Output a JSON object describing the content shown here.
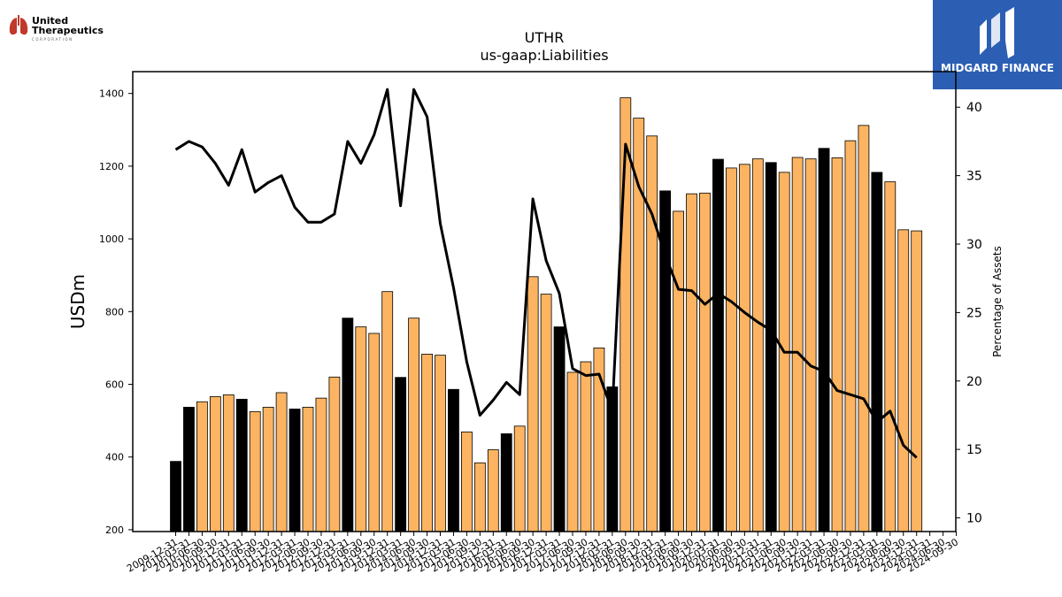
{
  "company_logo": {
    "line1": "United",
    "line2": "Therapeutics",
    "line3": "CORPORATION"
  },
  "watermark": {
    "brand": "MIDGARD FINANCE"
  },
  "chart_data": {
    "type": "bar",
    "title": "UTHR",
    "subtitle": "us-gaap:Liabilities",
    "ylabel": "USDm",
    "y2label": "Percentage of Assets",
    "ylim": [
      195,
      1460
    ],
    "y2lim": [
      9,
      42.6
    ],
    "yticks": [
      200,
      400,
      600,
      800,
      1000,
      1200,
      1400
    ],
    "y2ticks": [
      10,
      15,
      20,
      25,
      30,
      35,
      40
    ],
    "colors": {
      "bar_fy": "#000000",
      "bar_q": "#fdb462",
      "line": "#000000"
    },
    "categories": [
      "2009-12-31",
      "2010-03-31",
      "2010-06-30",
      "2010-09-30",
      "2010-12-31",
      "2011-03-31",
      "2011-06-30",
      "2011-09-30",
      "2011-12-31",
      "2012-03-31",
      "2012-06-30",
      "2012-09-30",
      "2012-12-31",
      "2013-03-31",
      "2013-06-30",
      "2013-09-30",
      "2013-12-31",
      "2014-03-31",
      "2014-06-30",
      "2014-09-30",
      "2014-12-31",
      "2015-03-31",
      "2015-06-30",
      "2015-09-30",
      "2015-12-31",
      "2016-03-31",
      "2016-06-30",
      "2016-09-30",
      "2016-12-31",
      "2017-03-31",
      "2017-06-30",
      "2017-09-30",
      "2017-12-31",
      "2018-03-31",
      "2018-06-30",
      "2018-09-30",
      "2018-12-31",
      "2019-03-31",
      "2019-06-30",
      "2019-09-30",
      "2019-12-31",
      "2020-03-31",
      "2020-06-30",
      "2020-09-30",
      "2020-12-31",
      "2021-03-31",
      "2021-06-30",
      "2021-09-30",
      "2021-12-31",
      "2022-03-31",
      "2022-06-30",
      "2022-09-30",
      "2022-12-31",
      "2023-03-31",
      "2023-06-30",
      "2023-09-30",
      "2023-12-31",
      "2024-03-31",
      "2024-06-30",
      "2024-09-30"
    ],
    "xtick_labels": [
      "2009-12-31",
      "2010-03-31",
      "2010-06-30",
      "2010-09-30",
      "2010-12-31",
      "2011-03-31",
      "2011-06-30",
      "2011-09-30",
      "2011-12-31",
      "2012-03-31",
      "2012-06-30",
      "2012-09-30",
      "2012-12-31",
      "2013-03-31",
      "2013-06-30",
      "2013-09-30",
      "2013-12-31",
      "2014-03-31",
      "2014-06-30",
      "2014-09-30",
      "2014-12-31",
      "2015-03-31",
      "2015-06-30",
      "2015-09-30",
      "2015-12-31",
      "2016-03-31",
      "2016-06-30",
      "2016-09-30",
      "2016-12-31",
      "2017-03-31",
      "2017-06-30",
      "2017-09-30",
      "2017-12-31",
      "2018-03-31",
      "2018-06-30",
      "2018-09-30",
      "2018-12-31",
      "2019-03-31",
      "2019-06-30",
      "2019-09-30",
      "2019-12-31",
      "2020-03-31",
      "2020-06-30",
      "2020-09-30",
      "2020-12-31",
      "2021-03-31",
      "2021-06-30",
      "2021-09-30",
      "2021-12-31",
      "2022-03-31",
      "2022-06-30",
      "2022-09-30",
      "2022-12-31",
      "2023-03-31",
      "2023-06-30",
      "2023-09-30",
      "2023-12-31",
      "2024-03-31",
      "2024-06-30",
      "2024-09-30"
    ],
    "values": [
      388,
      537,
      552,
      566,
      571,
      559,
      525,
      537,
      577,
      532,
      537,
      562,
      620,
      782,
      758,
      740,
      855,
      619,
      782,
      683,
      680,
      586,
      469,
      384,
      420,
      464,
      485,
      896,
      848,
      758,
      633,
      662,
      700,
      593,
      1388,
      1332,
      1283,
      1132,
      1076,
      1124,
      1126,
      1219,
      1195,
      1205,
      1220,
      1210,
      1183,
      1224,
      1220,
      1249,
      1223,
      1270,
      1312,
      1183,
      1157,
      1025,
      1022,
      null,
      null,
      null
    ],
    "fiscal_year_end": [
      true,
      true,
      false,
      false,
      false,
      true,
      false,
      false,
      false,
      true,
      false,
      false,
      false,
      true,
      false,
      false,
      false,
      true,
      false,
      false,
      false,
      true,
      false,
      false,
      false,
      true,
      false,
      false,
      false,
      true,
      false,
      false,
      false,
      true,
      false,
      false,
      false,
      true,
      false,
      false,
      false,
      true,
      false,
      false,
      false,
      true,
      false,
      false,
      false,
      true,
      false,
      false,
      false,
      true,
      false,
      false,
      false,
      false,
      false,
      false
    ],
    "pct_of_assets": [
      36.9,
      37.5,
      37.1,
      35.9,
      34.3,
      36.9,
      33.8,
      34.5,
      35.0,
      32.7,
      31.6,
      31.6,
      32.2,
      37.5,
      35.9,
      38.0,
      41.3,
      32.8,
      41.3,
      39.3,
      31.5,
      26.8,
      21.4,
      17.5,
      18.6,
      19.9,
      19.0,
      33.3,
      28.8,
      26.4,
      20.9,
      20.4,
      20.5,
      17.8,
      37.3,
      34.2,
      32.2,
      29.2,
      26.7,
      26.6,
      25.6,
      26.4,
      25.8,
      25.0,
      24.3,
      23.7,
      22.1,
      22.1,
      21.1,
      20.7,
      19.3,
      19.0,
      18.7,
      17.0,
      17.8,
      15.3,
      14.4,
      null,
      null,
      null
    ]
  }
}
